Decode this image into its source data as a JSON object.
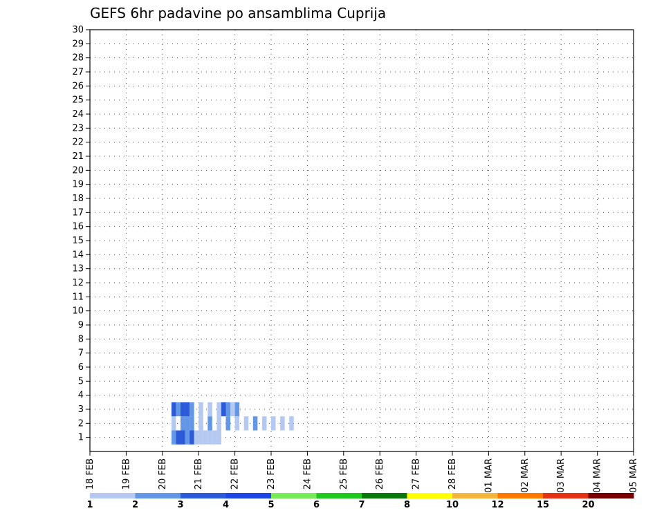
{
  "chart_data": {
    "type": "heatmap",
    "title": "GEFS 6hr padavine po ansamblima Cuprija",
    "xlabel": "",
    "ylabel": "",
    "x_ticks": [
      "18 FEB",
      "19 FEB",
      "20 FEB",
      "21 FEB",
      "22 FEB",
      "23 FEB",
      "24 FEB",
      "25 FEB",
      "26 FEB",
      "27 FEB",
      "28 FEB",
      "01 MAR",
      "02 MAR",
      "03 MAR",
      "04 MAR",
      "05 MAR"
    ],
    "xlim": [
      0,
      60
    ],
    "y_ticks": [
      1,
      2,
      3,
      4,
      5,
      6,
      7,
      8,
      9,
      10,
      11,
      12,
      13,
      14,
      15,
      16,
      17,
      18,
      19,
      20,
      21,
      22,
      23,
      24,
      25,
      26,
      27,
      28,
      29,
      30
    ],
    "ylim": [
      0,
      30
    ],
    "colorbar": {
      "labels": [
        "1",
        "2",
        "3",
        "4",
        "5",
        "6",
        "7",
        "8",
        "10",
        "12",
        "15",
        "20"
      ],
      "colors": [
        "#b4c8f0",
        "#6496e6",
        "#2d5ad8",
        "#1e46e6",
        "#78eb5a",
        "#1ec81e",
        "#0a780a",
        "#ffff00",
        "#f5b43c",
        "#ff7800",
        "#e63214",
        "#780000"
      ]
    },
    "cells": [
      [
        9,
        1,
        2
      ],
      [
        9.5,
        1,
        3
      ],
      [
        10,
        1,
        3
      ],
      [
        10.5,
        1,
        2
      ],
      [
        11,
        1,
        3
      ],
      [
        11.5,
        1,
        1
      ],
      [
        12,
        1,
        1
      ],
      [
        12.5,
        1,
        1
      ],
      [
        13,
        1,
        1
      ],
      [
        13.5,
        1,
        1
      ],
      [
        14,
        1,
        1
      ],
      [
        9,
        2,
        1
      ],
      [
        10,
        2,
        2
      ],
      [
        10.5,
        2,
        2
      ],
      [
        11,
        2,
        2
      ],
      [
        12,
        2,
        1
      ],
      [
        13,
        2,
        2
      ],
      [
        14,
        2,
        1
      ],
      [
        15,
        2,
        2
      ],
      [
        16,
        2,
        1
      ],
      [
        17,
        2,
        1
      ],
      [
        18,
        2,
        2
      ],
      [
        19,
        2,
        1
      ],
      [
        20,
        2,
        1
      ],
      [
        21,
        2,
        1
      ],
      [
        22,
        2,
        1
      ],
      [
        9,
        3,
        3
      ],
      [
        9.5,
        3,
        2
      ],
      [
        10,
        3,
        3
      ],
      [
        10.5,
        3,
        3
      ],
      [
        11,
        3,
        2
      ],
      [
        12,
        3,
        1
      ],
      [
        13,
        3,
        1
      ],
      [
        14,
        3,
        1
      ],
      [
        14.5,
        3,
        3
      ],
      [
        15,
        3,
        2
      ],
      [
        15.5,
        3,
        1
      ],
      [
        16,
        3,
        2
      ]
    ]
  }
}
